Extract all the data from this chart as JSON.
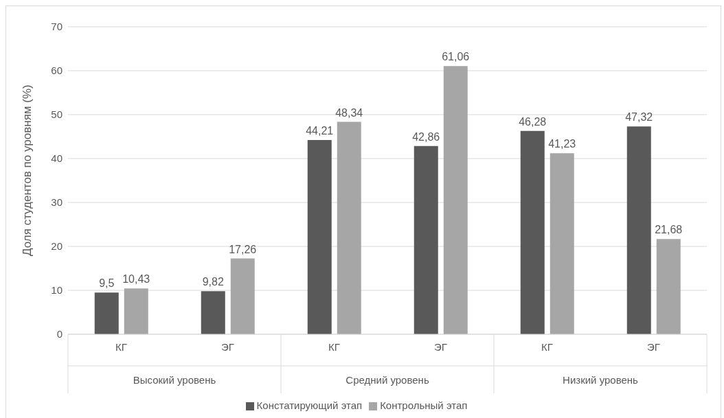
{
  "chart_data": {
    "type": "bar",
    "ylabel": "Доля студентов по уровням (%)",
    "categories": [
      "КГ",
      "ЭГ",
      "КГ",
      "ЭГ",
      "КГ",
      "ЭГ"
    ],
    "annotations": [
      "Высокий уровень",
      "Средний уровень",
      "Низкий уровень"
    ],
    "series": [
      {
        "name": "Констатирующий этап",
        "color": "#595959",
        "values": [
          9.5,
          9.82,
          44.21,
          42.86,
          46.28,
          47.32
        ],
        "value_labels": [
          "9,5",
          "9,82",
          "44,21",
          "42,86",
          "46,28",
          "47,32"
        ]
      },
      {
        "name": "Контрольный этап",
        "color": "#a6a6a6",
        "values": [
          10.43,
          17.26,
          48.34,
          61.06,
          41.23,
          21.68
        ],
        "value_labels": [
          "10,43",
          "17,26",
          "48,34",
          "61,06",
          "41,23",
          "21,68"
        ]
      }
    ],
    "ylim": [
      0,
      70
    ],
    "yticks": [
      0,
      10,
      20,
      30,
      40,
      50,
      60,
      70
    ],
    "grid": "y",
    "legend": "bottom"
  }
}
